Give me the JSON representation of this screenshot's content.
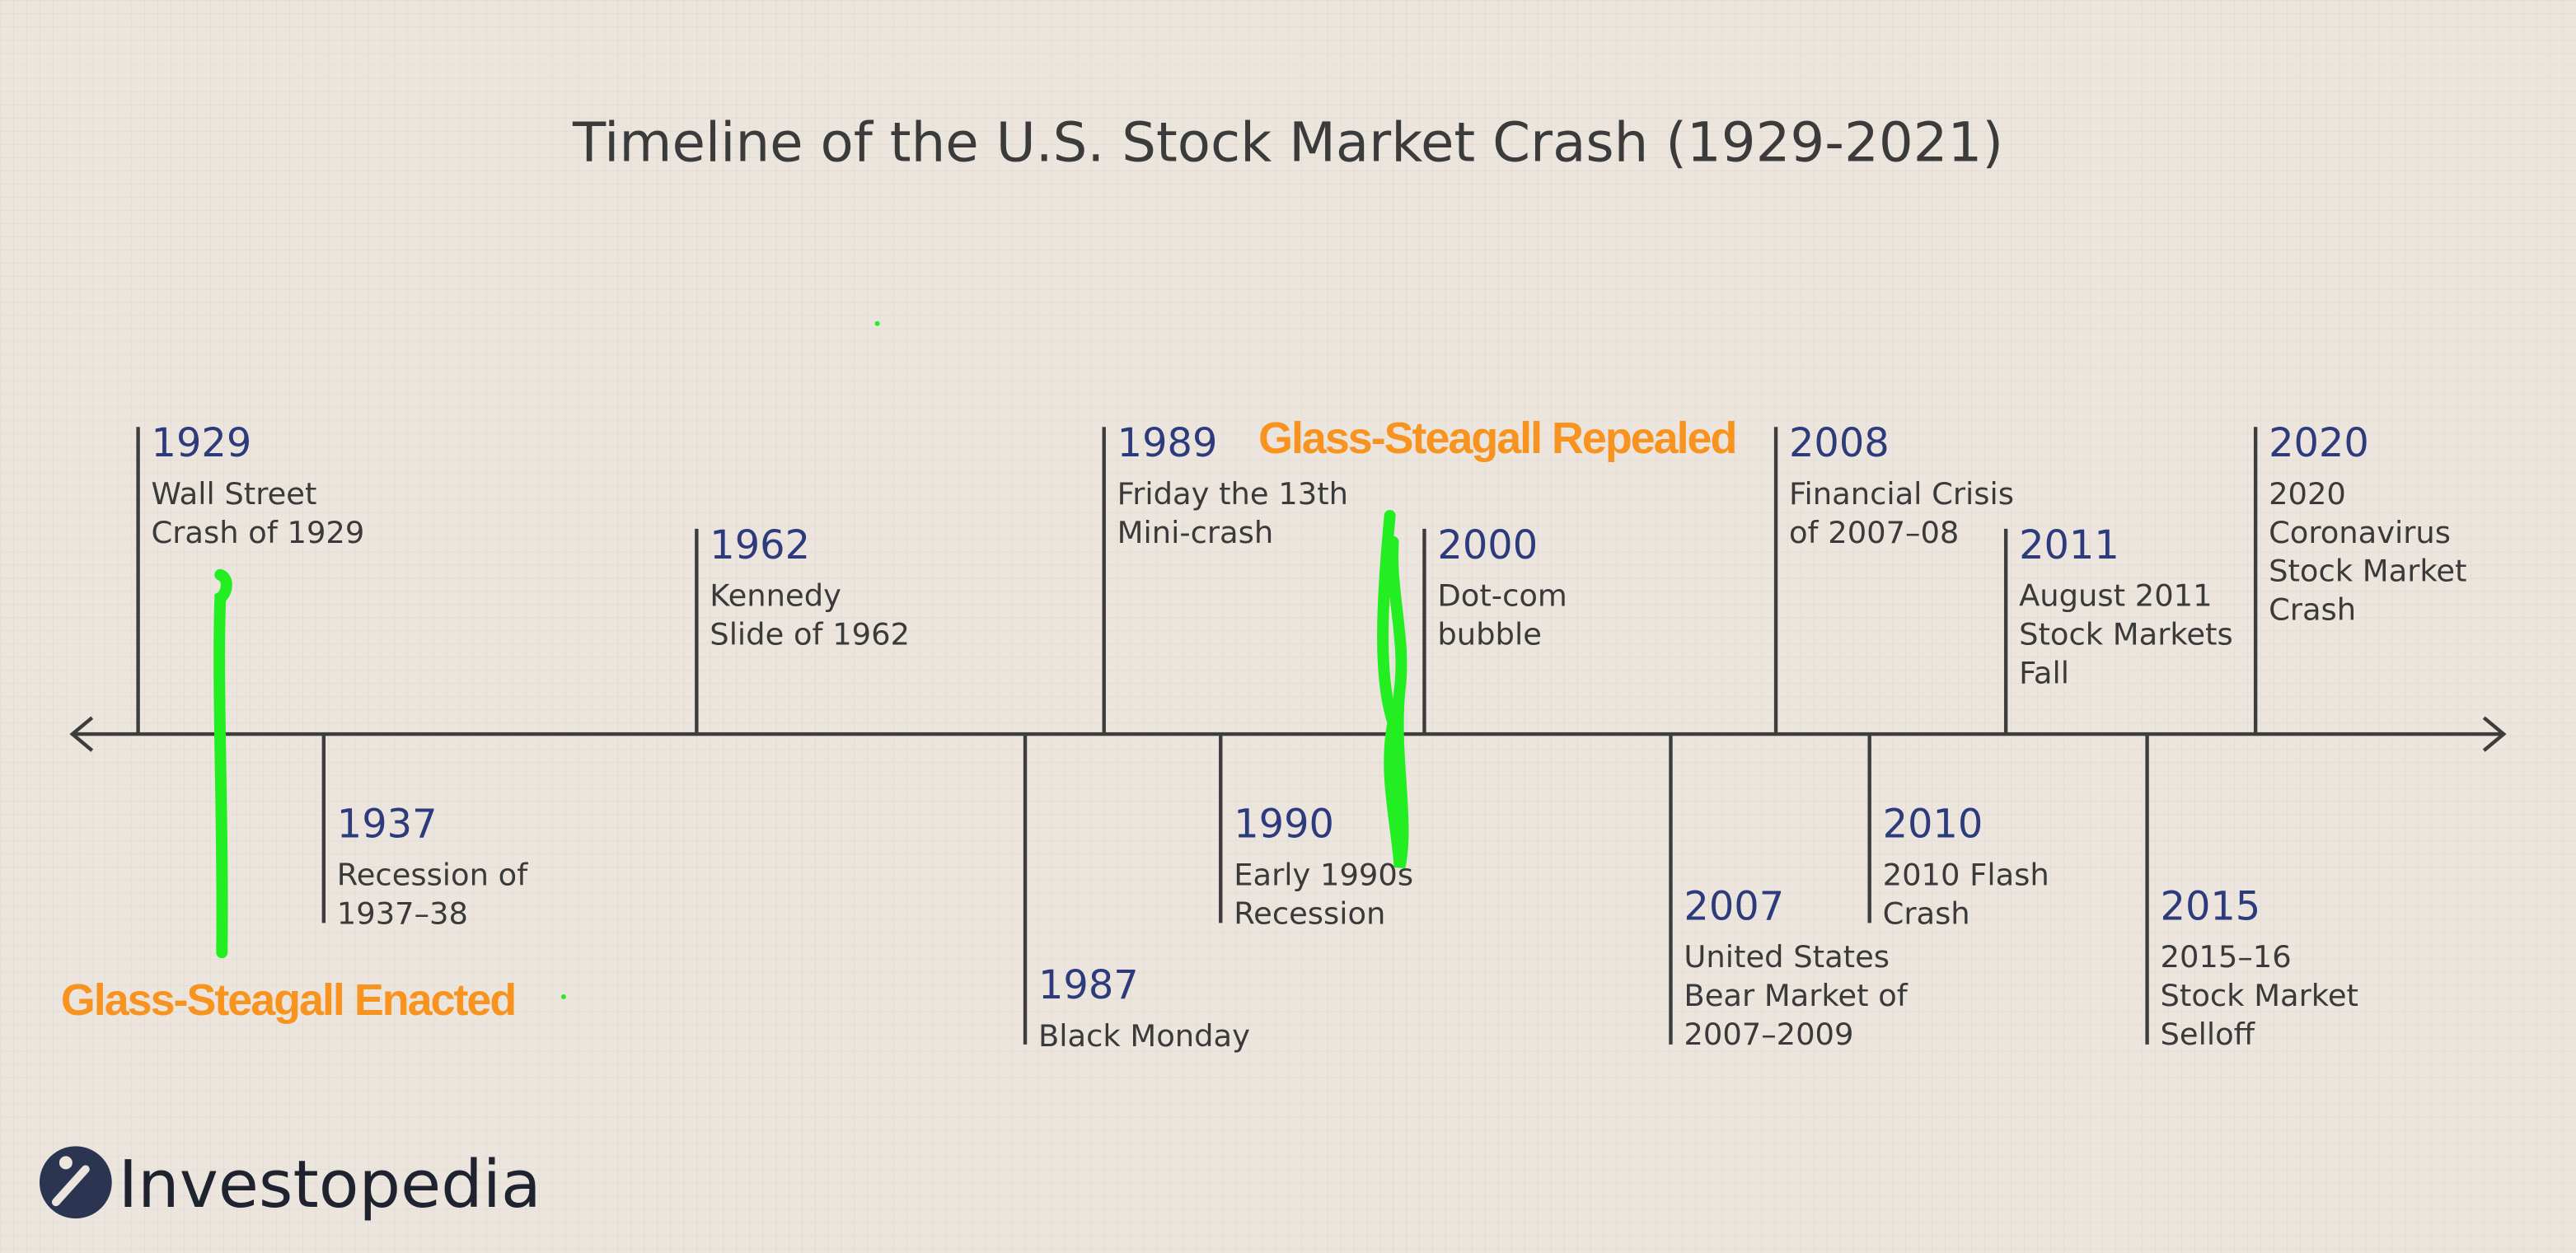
{
  "title": "Timeline of the U.S. Stock Market Crash (1929-2021)",
  "events": [
    {
      "year": "1929",
      "lines": [
        "Wall Street",
        "Crash of 1929"
      ]
    },
    {
      "year": "1937",
      "lines": [
        "Recession of",
        "1937–38"
      ]
    },
    {
      "year": "1962",
      "lines": [
        "Kennedy",
        "Slide of 1962"
      ]
    },
    {
      "year": "1987",
      "lines": [
        "Black Monday"
      ]
    },
    {
      "year": "1989",
      "lines": [
        "Friday the 13th",
        "Mini-crash"
      ]
    },
    {
      "year": "1990",
      "lines": [
        "Early 1990s",
        "Recession"
      ]
    },
    {
      "year": "2000",
      "lines": [
        "Dot-com",
        "bubble"
      ]
    },
    {
      "year": "2007",
      "lines": [
        "United States",
        "Bear Market of",
        "2007–2009"
      ]
    },
    {
      "year": "2008",
      "lines": [
        "Financial Crisis",
        "of 2007–08"
      ]
    },
    {
      "year": "2010",
      "lines": [
        "2010 Flash",
        "Crash"
      ]
    },
    {
      "year": "2011",
      "lines": [
        "August 2011",
        "Stock Markets",
        "Fall"
      ]
    },
    {
      "year": "2015",
      "lines": [
        "2015–16",
        "Stock Market",
        "Selloff"
      ]
    },
    {
      "year": "2020",
      "lines": [
        "2020",
        "Coronavirus",
        "Stock Market",
        "Crash"
      ]
    }
  ],
  "annotations": {
    "enacted": "Glass-Steagall Enacted",
    "repealed": "Glass-Steagall Repealed"
  },
  "logo": "Investopedia"
}
